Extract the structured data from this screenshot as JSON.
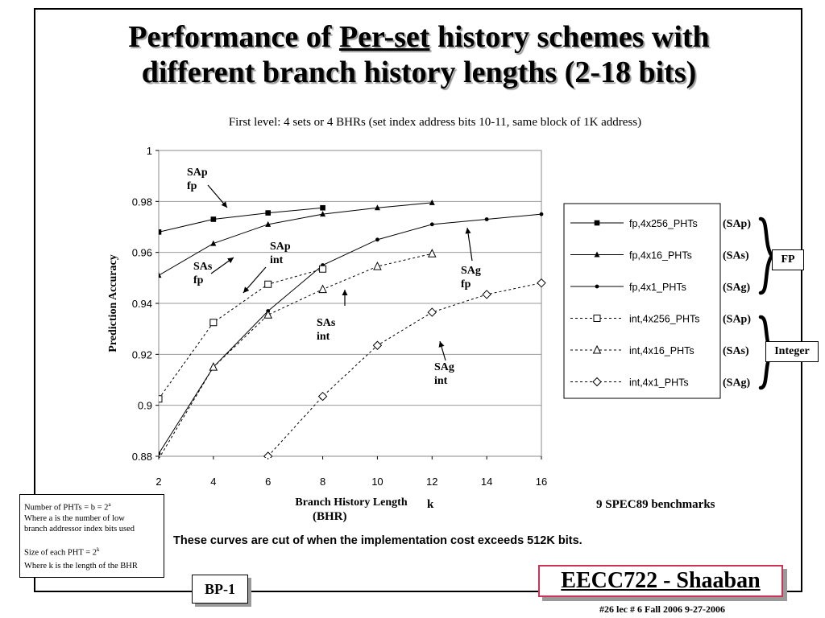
{
  "slide": {
    "title_part1": "Performance of",
    "title_underlined": "Per-set",
    "title_part2": "history schemes with",
    "title_line2": "different branch history lengths (2-18 bits)",
    "subtitle": "First level:  4 sets  or 4 BHRs    (set index address bits 10-11,  same block of 1K address)",
    "k_label": "k",
    "bhr_label": "(BHR)",
    "benchmarks": "9 SPEC89 benchmarks",
    "cut_note": "These curves are cut of when the implementation cost exceeds 512K bits.",
    "note_box": {
      "line1_text": "Number of PHTs = b = 2",
      "line1_sup": "a",
      "line2": "Where a is the number of low",
      "line3": "branch addressor index bits used",
      "line4_text": "Size of each PHT = 2",
      "line4_sup": "k",
      "line5": "Where k is the length of the BHR"
    },
    "bp_label": "BP-1",
    "brand": "EECC722 - Shaaban",
    "footer": "#26   lec # 6   Fall 2006   9-27-2006",
    "fp_tag": "FP",
    "int_tag": "Integer"
  },
  "chart_data": {
    "type": "line",
    "ylabel": "Prediction Accuracy",
    "xlabel": "Branch History Length",
    "xlim": [
      2,
      16
    ],
    "ylim": [
      0.88,
      1.0
    ],
    "x_ticks": [
      "2",
      "4",
      "6",
      "8",
      "10",
      "12",
      "14",
      "16"
    ],
    "y_ticks": [
      "0.88",
      "0.9",
      "0.92",
      "0.94",
      "0.96",
      "0.98",
      "1"
    ],
    "grid": true,
    "legend_position": "right",
    "series": [
      {
        "name": "fp,4x256_PHTs",
        "scheme": "(SAp)",
        "marker": "square-filled",
        "dash": false,
        "x": [
          2,
          4,
          6,
          8
        ],
        "y": [
          0.968,
          0.973,
          0.9755,
          0.9775
        ]
      },
      {
        "name": "fp,4x16_PHTs",
        "scheme": "(SAs)",
        "marker": "triangle-filled",
        "dash": false,
        "x": [
          2,
          4,
          6,
          8,
          10,
          12
        ],
        "y": [
          0.951,
          0.9635,
          0.971,
          0.975,
          0.9775,
          0.9795
        ]
      },
      {
        "name": "fp,4x1_PHTs",
        "scheme": "(SAg)",
        "marker": "dot",
        "dash": false,
        "x": [
          2,
          4,
          6,
          8,
          10,
          12,
          14,
          16
        ],
        "y": [
          0.881,
          0.915,
          0.937,
          0.955,
          0.965,
          0.971,
          0.973,
          0.975
        ]
      },
      {
        "name": "int,4x256_PHTs",
        "scheme": "(SAp)",
        "marker": "square-open",
        "dash": true,
        "x": [
          2,
          4,
          6,
          8
        ],
        "y": [
          0.9025,
          0.9325,
          0.9475,
          0.9535
        ]
      },
      {
        "name": "int,4x16_PHTs",
        "scheme": "(SAs)",
        "marker": "triangle-open",
        "dash": true,
        "x": [
          2,
          4,
          6,
          8,
          10,
          12
        ],
        "y": [
          0.879,
          0.915,
          0.9355,
          0.9455,
          0.9545,
          0.9595
        ]
      },
      {
        "name": "int,4x1_PHTs",
        "scheme": "(SAg)",
        "marker": "diamond-open",
        "dash": true,
        "x": [
          6,
          8,
          10,
          12,
          14,
          16
        ],
        "y": [
          0.88,
          0.9035,
          0.9235,
          0.9365,
          0.9435,
          0.948
        ]
      }
    ],
    "annotations": [
      {
        "line1": "SAp",
        "line2": "fp"
      },
      {
        "line1": "SAs",
        "line2": "fp"
      },
      {
        "line1": "SAp",
        "line2": "int"
      },
      {
        "line1": "SAs",
        "line2": "int"
      },
      {
        "line1": "SAg",
        "line2": "fp"
      },
      {
        "line1": "SAg",
        "line2": "int"
      }
    ]
  }
}
